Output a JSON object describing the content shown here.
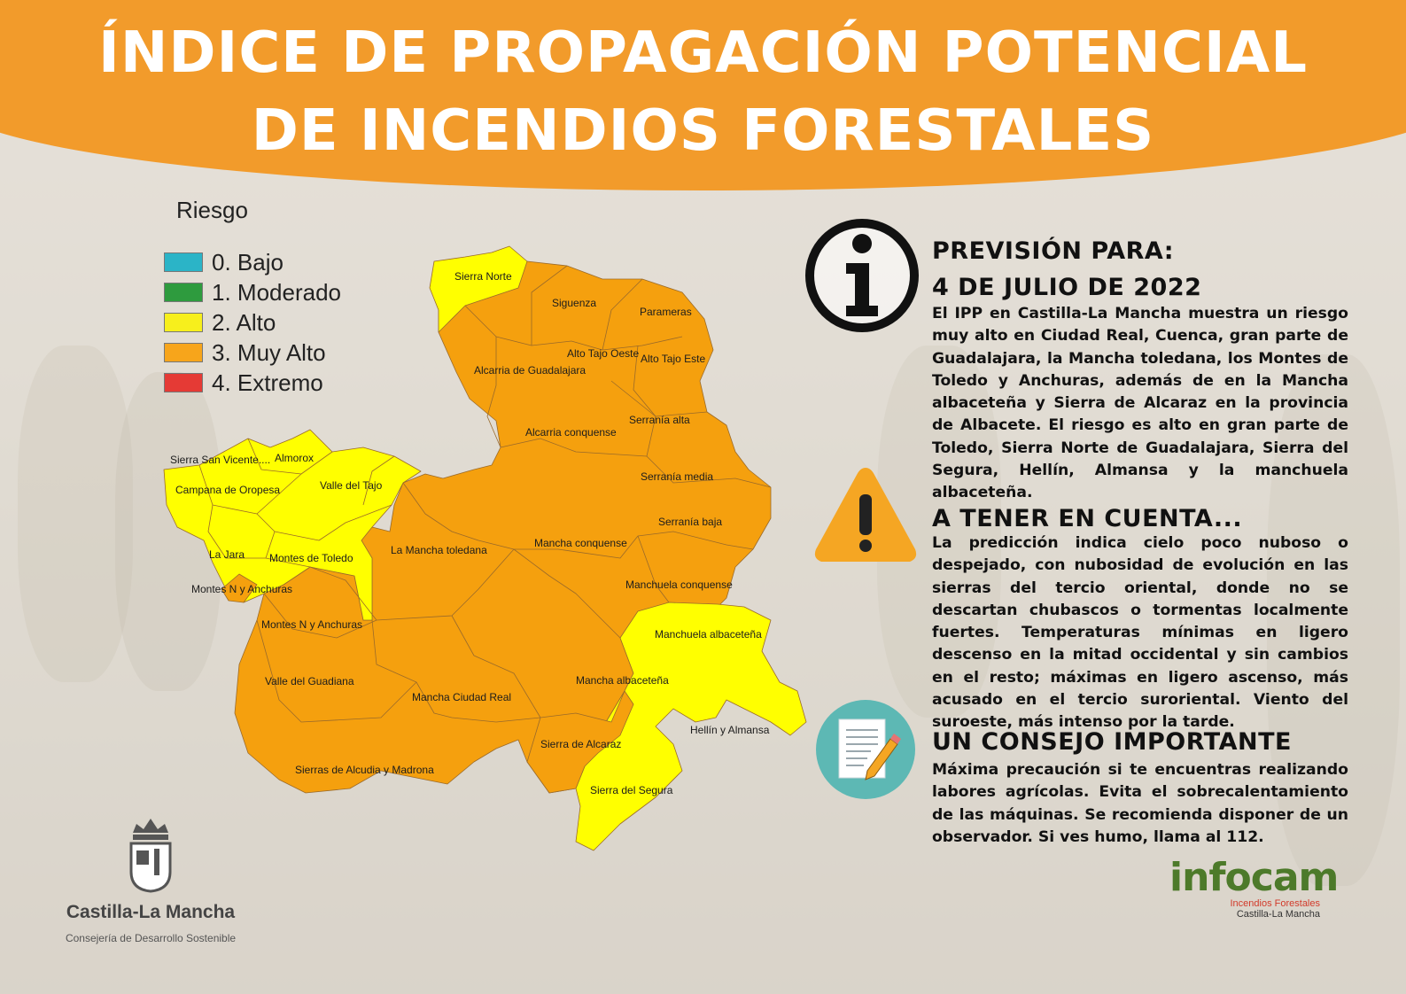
{
  "title": {
    "line1": "ÍNDICE DE PROPAGACIÓN POTENCIAL",
    "line2": "DE INCENDIOS FORESTALES"
  },
  "legend": {
    "title": "Riesgo",
    "items": [
      {
        "label": "0. Bajo",
        "color": "#2bb4c7"
      },
      {
        "label": "1. Moderado",
        "color": "#2e9b3e"
      },
      {
        "label": "2. Alto",
        "color": "#f7ef1c"
      },
      {
        "label": "3. Muy Alto",
        "color": "#f7a51b"
      },
      {
        "label": "4. Extremo",
        "color": "#e53a35"
      }
    ]
  },
  "map": {
    "colors": {
      "muy_alto": "#f5a00e",
      "alto": "#ffff00",
      "border": "#9a6a2a"
    },
    "zones": [
      {
        "name": "Sierra Norte",
        "level": "2. Alto"
      },
      {
        "name": "Siguenza",
        "level": "3. Muy Alto"
      },
      {
        "name": "Parameras",
        "level": "3. Muy Alto"
      },
      {
        "name": "Alto Tajo Oeste",
        "level": "3. Muy Alto"
      },
      {
        "name": "Alto Tajo Este",
        "level": "3. Muy Alto"
      },
      {
        "name": "Alcarria de Guadalajara",
        "level": "3. Muy Alto"
      },
      {
        "name": "Serranía alta",
        "level": "3. Muy Alto"
      },
      {
        "name": "Alcarria conquense",
        "level": "3. Muy Alto"
      },
      {
        "name": "Serranía media",
        "level": "3. Muy Alto"
      },
      {
        "name": "Serranía baja",
        "level": "3. Muy Alto"
      },
      {
        "name": "Sierra San Vicente",
        "level": "2. Alto"
      },
      {
        "name": "Almorox",
        "level": "2. Alto"
      },
      {
        "name": "Campana de Oropesa",
        "level": "2. Alto"
      },
      {
        "name": "Valle del Tajo",
        "level": "2. Alto"
      },
      {
        "name": "La Jara",
        "level": "2. Alto"
      },
      {
        "name": "Montes de Toledo",
        "level": "2. Alto"
      },
      {
        "name": "La Mancha toledana",
        "level": "3. Muy Alto"
      },
      {
        "name": "Mancha conquense",
        "level": "3. Muy Alto"
      },
      {
        "name": "Manchuela conquense",
        "level": "3. Muy Alto"
      },
      {
        "name": "Montes N y Anchuras (Toledo)",
        "level": "2. Alto"
      },
      {
        "name": "Montes N y Anchuras",
        "level": "3. Muy Alto"
      },
      {
        "name": "Manchuela albaceteña",
        "level": "2. Alto"
      },
      {
        "name": "Valle del Guadiana",
        "level": "3. Muy Alto"
      },
      {
        "name": "Mancha albaceteña",
        "level": "3. Muy Alto"
      },
      {
        "name": "Mancha Ciudad Real",
        "level": "3. Muy Alto"
      },
      {
        "name": "Hellín y Almansa",
        "level": "2. Alto"
      },
      {
        "name": "Sierra de Alcaraz",
        "level": "3. Muy Alto"
      },
      {
        "name": "Sierras de Alcudia y Madrona",
        "level": "3. Muy Alto"
      },
      {
        "name": "Sierra del Segura",
        "level": "2. Alto"
      }
    ],
    "labels": {
      "sierra_norte": "Sierra Norte",
      "siguenza": "Siguenza",
      "parameras": "Parameras",
      "alto_tajo_oeste": "Alto Tajo Oeste",
      "alto_tajo_este": "Alto Tajo Este",
      "alcarria_guadalajara": "Alcarria de Guadalajara",
      "serrania_alta": "Serranía alta",
      "alcarria_conquense": "Alcarria conquense",
      "serrania_media": "Serranía media",
      "serrania_baja": "Serranía baja",
      "sierra_san_vicente": "Sierra San Vicente....",
      "almorox": "Almorox",
      "campana_oropesa": "Campana de Oropesa",
      "valle_tajo": "Valle del Tajo",
      "la_jara": "La Jara",
      "montes_toledo": "Montes de Toledo",
      "mancha_toledana": "La Mancha toledana",
      "mancha_conquense": "Mancha conquense",
      "manchuela_conquense": "Manchuela conquense",
      "montes_n_anchuras_to": "Montes N y Anchuras",
      "montes_n_anchuras_cr": "Montes N y Anchuras",
      "manchuela_albacetena": "Manchuela albaceteña",
      "valle_guadiana": "Valle del Guadiana",
      "mancha_albacetena": "Mancha albaceteña",
      "mancha_ciudad_real": "Mancha Ciudad Real",
      "hellin_almansa": "Hellín y Almansa",
      "sierra_alcaraz": "Sierra de Alcaraz",
      "sierras_alcudia": "Sierras de Alcudia y Madrona",
      "sierra_segura": "Sierra del Segura"
    }
  },
  "forecast": {
    "heading": "PREVISIÓN PARA:",
    "date": "4 DE JULIO DE 2022",
    "text": "El IPP en Castilla-La Mancha muestra un riesgo muy alto en Ciudad Real, Cuenca, gran parte de Guadalajara, la Mancha toledana, los Montes de Toledo y Anchuras, además de en la Mancha albaceteña y Sierra de Alcaraz en la provincia de Albacete. El riesgo es alto en gran parte de Toledo, Sierra Norte de Guadalajara, Sierra del Segura, Hellín, Almansa y la manchuela albaceteña."
  },
  "notice": {
    "heading": "A TENER EN CUENTA...",
    "text": "La predicción indica cielo poco nuboso o despejado, con nubosidad de evolución en las sierras del tercio oriental, donde no se descartan chubascos o tormentas localmente fuertes. Temperaturas mínimas en ligero descenso en la mitad occidental y sin cambios en el resto; máximas en ligero ascenso, más acusado en el tercio suroriental. Viento del suroeste, más intenso por la tarde."
  },
  "advice": {
    "heading": "UN CONSEJO IMPORTANTE",
    "text": "Máxima precaución si te encuentras realizando labores agrícolas. Evita el sobrecalentamiento de las máquinas. Se recomienda disponer de un observador.  Si ves humo, llama al 112."
  },
  "logos": {
    "clm_name": "Castilla-La Mancha",
    "clm_sub": "Consejería de Desarrollo Sostenible",
    "infocam_brand": "infocam",
    "infocam_line1": "Incendios Forestales",
    "infocam_line2": "Castilla-La Mancha"
  },
  "icons": [
    "info-icon",
    "warning-icon",
    "document-pencil-icon",
    "coat-of-arms-icon"
  ]
}
